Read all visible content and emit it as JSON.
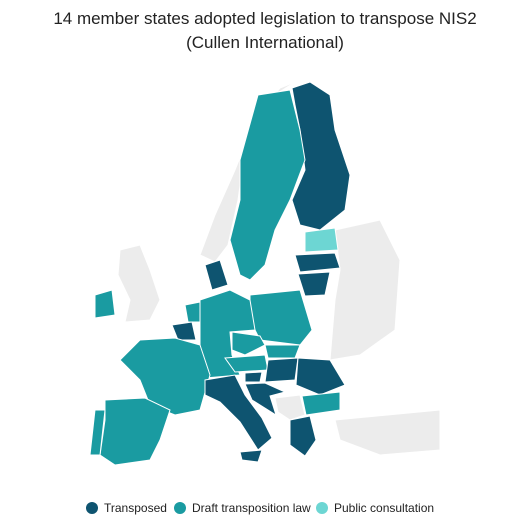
{
  "title": [
    "14 member states adopted legislation to transpose NIS2",
    "(Cullen International)"
  ],
  "legend": [
    {
      "label": "Transposed",
      "color": "#0e5470"
    },
    {
      "label": "Draft transposition law",
      "color": "#1a9ba1"
    },
    {
      "label": "Public consultation",
      "color": "#6dd6d3"
    }
  ]
}
